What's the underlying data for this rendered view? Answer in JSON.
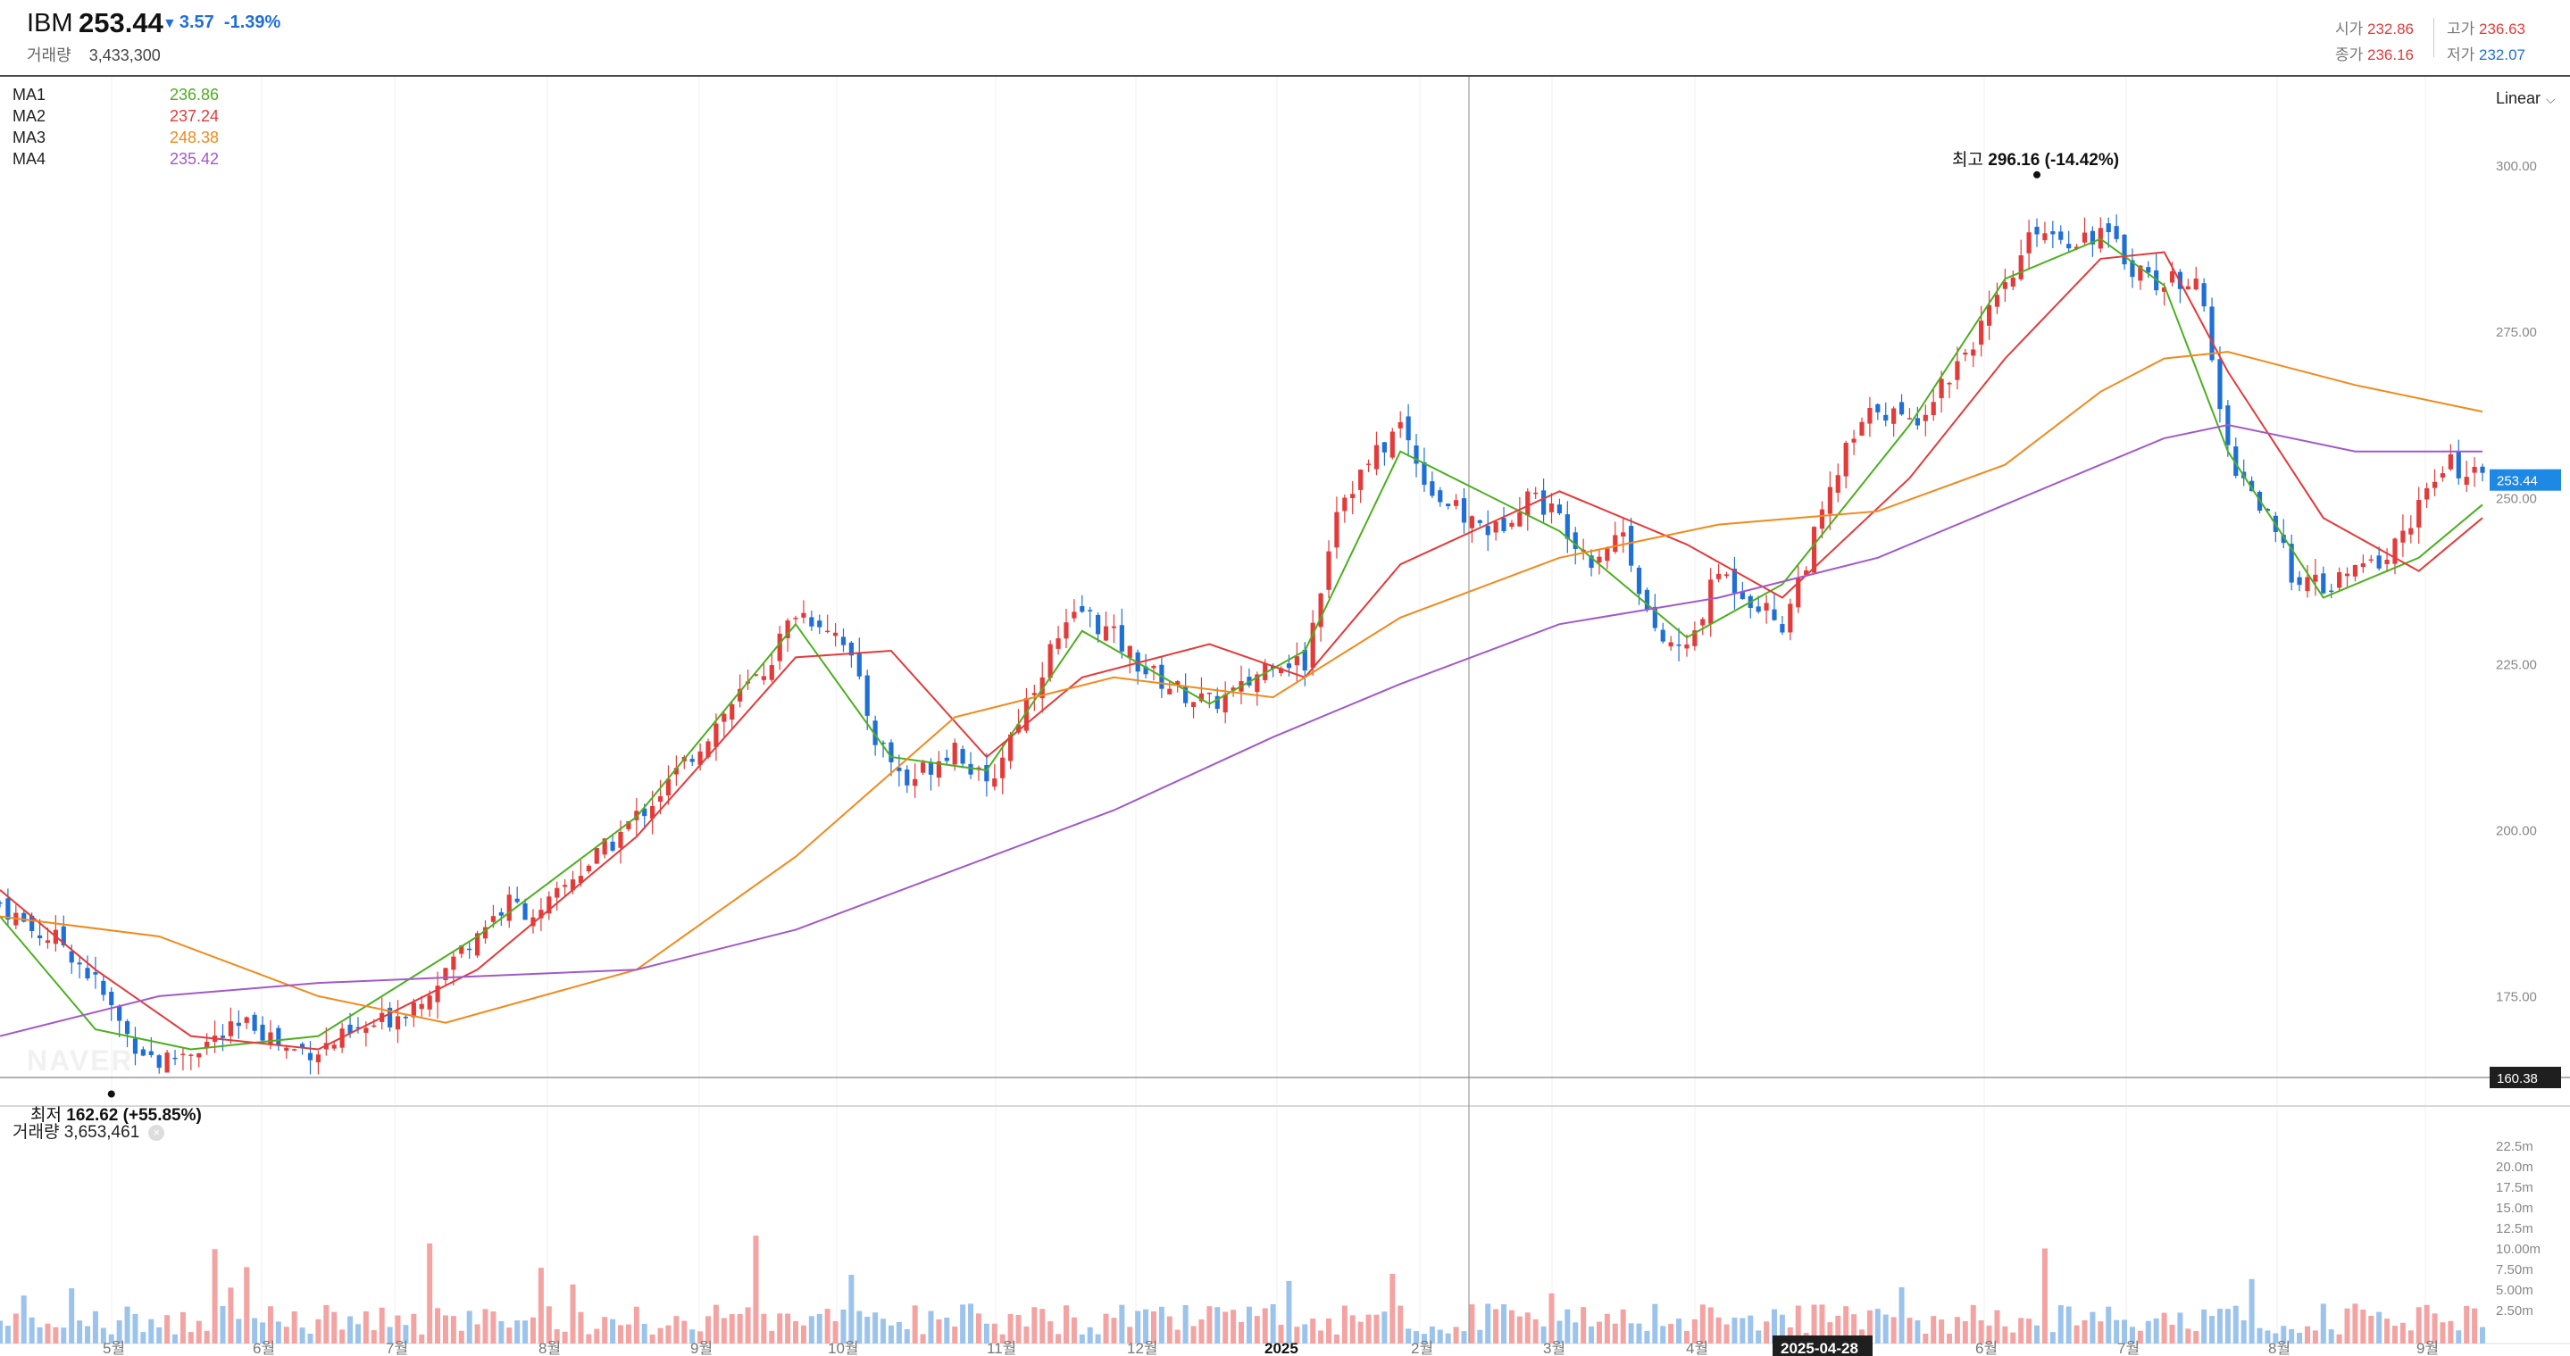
{
  "header": {
    "symbol": "IBM",
    "price": "253.44",
    "change": "3.57",
    "change_pct": "-1.39%",
    "volume_label": "거래량",
    "volume_value": "3,433,300",
    "ohlc": {
      "open_label": "시가",
      "open": "232.86",
      "close_label": "종가",
      "close": "236.16",
      "high_label": "고가",
      "high": "236.63",
      "low_label": "저가",
      "low": "232.07"
    }
  },
  "legend": [
    {
      "name": "MA1",
      "value": "236.86",
      "color": "#4caf1f"
    },
    {
      "name": "MA2",
      "value": "237.24",
      "color": "#e33a3a"
    },
    {
      "name": "MA3",
      "value": "248.38",
      "color": "#f08a1c"
    },
    {
      "name": "MA4",
      "value": "235.42",
      "color": "#a259c9"
    }
  ],
  "scale_mode": "Linear",
  "annotations": {
    "high_label": "최고",
    "high_value": "296.16 (-14.42%)",
    "low_label": "최저",
    "low_value": "162.62 (+55.85%)"
  },
  "price_axis": {
    "ticks": [
      "300.00",
      "275.00",
      "250.00",
      "225.00",
      "200.00",
      "175.00"
    ],
    "current_tag": "253.44",
    "crosshair_tag": "160.38"
  },
  "volume_panel": {
    "label": "거래량",
    "value": "3,653,461",
    "ticks": [
      "22.5m",
      "20.0m",
      "17.5m",
      "15.0m",
      "12.5m",
      "10.00m",
      "7.50m",
      "5.00m",
      "2.50m"
    ]
  },
  "time_axis": {
    "labels": [
      "5월",
      "6월",
      "7월",
      "8월",
      "9월",
      "10월",
      "11월",
      "12월",
      "2025",
      "2월",
      "3월",
      "4월",
      "6월",
      "7월",
      "8월",
      "9월"
    ],
    "crosshair_date": "2025-04-28"
  },
  "watermark": "NAVER",
  "colors": {
    "up": "#e33a3a",
    "down": "#1f6fd6",
    "up_vol": "#f4a3a3",
    "down_vol": "#9cc3ec",
    "tag": "#1e88e5"
  },
  "chart_data": {
    "type": "candlestick",
    "series_price_range": [
      160,
      305
    ],
    "price_points": [
      [
        0,
        190
      ],
      [
        4,
        186
      ],
      [
        8,
        184
      ],
      [
        12,
        178
      ],
      [
        16,
        170
      ],
      [
        20,
        166
      ],
      [
        24,
        168
      ],
      [
        28,
        170
      ],
      [
        32,
        172
      ],
      [
        36,
        168
      ],
      [
        40,
        168
      ],
      [
        44,
        170
      ],
      [
        48,
        172
      ],
      [
        52,
        175
      ],
      [
        56,
        180
      ],
      [
        60,
        186
      ],
      [
        64,
        190
      ],
      [
        68,
        188
      ],
      [
        72,
        194
      ],
      [
        76,
        198
      ],
      [
        80,
        203
      ],
      [
        84,
        208
      ],
      [
        88,
        214
      ],
      [
        92,
        220
      ],
      [
        96,
        225
      ],
      [
        100,
        234
      ],
      [
        104,
        232
      ],
      [
        106,
        230
      ],
      [
        110,
        215
      ],
      [
        114,
        208
      ],
      [
        118,
        212
      ],
      [
        120,
        214
      ],
      [
        124,
        207
      ],
      [
        128,
        218
      ],
      [
        132,
        228
      ],
      [
        136,
        234
      ],
      [
        140,
        230
      ],
      [
        144,
        225
      ],
      [
        148,
        222
      ],
      [
        152,
        220
      ],
      [
        156,
        222
      ],
      [
        160,
        227
      ],
      [
        164,
        226
      ],
      [
        168,
        250
      ],
      [
        172,
        256
      ],
      [
        176,
        262
      ],
      [
        180,
        252
      ],
      [
        184,
        248
      ],
      [
        188,
        246
      ],
      [
        192,
        252
      ],
      [
        196,
        248
      ],
      [
        200,
        242
      ],
      [
        204,
        246
      ],
      [
        208,
        230
      ],
      [
        212,
        228
      ],
      [
        216,
        240
      ],
      [
        220,
        236
      ],
      [
        224,
        232
      ],
      [
        228,
        245
      ],
      [
        232,
        258
      ],
      [
        236,
        265
      ],
      [
        240,
        262
      ],
      [
        244,
        268
      ],
      [
        248,
        275
      ],
      [
        252,
        282
      ],
      [
        256,
        292
      ],
      [
        260,
        290
      ],
      [
        264,
        291
      ],
      [
        268,
        286
      ],
      [
        272,
        283
      ],
      [
        276,
        285
      ],
      [
        280,
        258
      ],
      [
        284,
        250
      ],
      [
        288,
        240
      ],
      [
        292,
        237
      ],
      [
        296,
        240
      ],
      [
        300,
        242
      ],
      [
        304,
        250
      ],
      [
        308,
        256
      ],
      [
        312,
        253.44
      ]
    ],
    "ma1": [
      [
        0,
        188
      ],
      [
        12,
        171
      ],
      [
        24,
        168
      ],
      [
        40,
        170
      ],
      [
        60,
        185
      ],
      [
        80,
        203
      ],
      [
        100,
        232
      ],
      [
        112,
        212
      ],
      [
        124,
        210
      ],
      [
        136,
        231
      ],
      [
        152,
        220
      ],
      [
        164,
        228
      ],
      [
        176,
        258
      ],
      [
        196,
        246
      ],
      [
        212,
        230
      ],
      [
        224,
        238
      ],
      [
        240,
        262
      ],
      [
        252,
        284
      ],
      [
        264,
        290
      ],
      [
        272,
        283
      ],
      [
        280,
        258
      ],
      [
        292,
        236
      ],
      [
        304,
        242
      ],
      [
        312,
        250
      ]
    ],
    "ma2": [
      [
        0,
        192
      ],
      [
        12,
        180
      ],
      [
        24,
        170
      ],
      [
        40,
        168
      ],
      [
        60,
        180
      ],
      [
        80,
        200
      ],
      [
        100,
        227
      ],
      [
        112,
        228
      ],
      [
        124,
        212
      ],
      [
        136,
        224
      ],
      [
        152,
        229
      ],
      [
        164,
        224
      ],
      [
        176,
        241
      ],
      [
        196,
        252
      ],
      [
        212,
        244
      ],
      [
        224,
        236
      ],
      [
        240,
        254
      ],
      [
        252,
        272
      ],
      [
        264,
        287
      ],
      [
        272,
        288
      ],
      [
        280,
        270
      ],
      [
        292,
        248
      ],
      [
        304,
        240
      ],
      [
        312,
        248
      ]
    ],
    "ma3": [
      [
        0,
        188
      ],
      [
        20,
        185
      ],
      [
        40,
        176
      ],
      [
        56,
        172
      ],
      [
        80,
        180
      ],
      [
        100,
        197
      ],
      [
        120,
        218
      ],
      [
        140,
        224
      ],
      [
        160,
        221
      ],
      [
        176,
        233
      ],
      [
        196,
        242
      ],
      [
        216,
        247
      ],
      [
        236,
        249
      ],
      [
        252,
        256
      ],
      [
        264,
        267
      ],
      [
        272,
        272
      ],
      [
        280,
        273
      ],
      [
        296,
        268
      ],
      [
        312,
        264
      ]
    ],
    "ma4": [
      [
        0,
        170
      ],
      [
        20,
        176
      ],
      [
        40,
        178
      ],
      [
        60,
        179
      ],
      [
        80,
        180
      ],
      [
        100,
        186
      ],
      [
        120,
        195
      ],
      [
        140,
        204
      ],
      [
        160,
        215
      ],
      [
        176,
        223
      ],
      [
        196,
        232
      ],
      [
        216,
        236
      ],
      [
        236,
        242
      ],
      [
        252,
        250
      ],
      [
        264,
        256
      ],
      [
        272,
        260
      ],
      [
        280,
        262
      ],
      [
        296,
        258
      ],
      [
        312,
        258
      ]
    ],
    "max": {
      "value": 296.16,
      "label": "최고 296.16 (-14.42%)"
    },
    "min": {
      "value": 162.62,
      "label": "최저 162.62 (+55.85%)"
    }
  }
}
